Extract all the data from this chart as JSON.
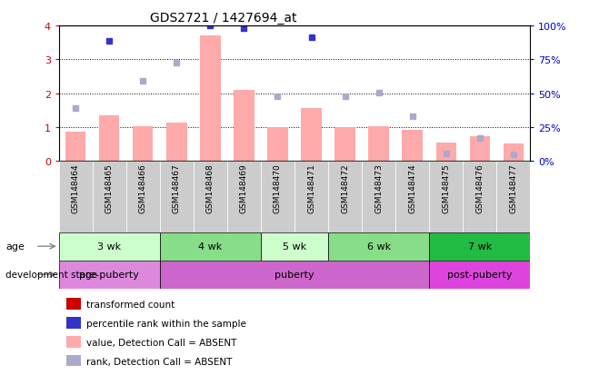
{
  "title": "GDS2721 / 1427694_at",
  "samples": [
    "GSM148464",
    "GSM148465",
    "GSM148466",
    "GSM148467",
    "GSM148468",
    "GSM148469",
    "GSM148470",
    "GSM148471",
    "GSM148472",
    "GSM148473",
    "GSM148474",
    "GSM148475",
    "GSM148476",
    "GSM148477"
  ],
  "bar_values": [
    0.85,
    1.35,
    1.02,
    1.12,
    3.7,
    2.1,
    1.0,
    1.55,
    1.0,
    1.02,
    0.9,
    0.55,
    0.72,
    0.52
  ],
  "rank_values": [
    1.55,
    3.55,
    2.35,
    2.9,
    4.0,
    3.92,
    1.9,
    3.65,
    1.9,
    2.02,
    1.32,
    0.22,
    0.67,
    0.18
  ],
  "bar_absent": [
    true,
    true,
    true,
    true,
    true,
    true,
    true,
    true,
    true,
    true,
    true,
    true,
    true,
    true
  ],
  "rank_absent": [
    true,
    false,
    true,
    true,
    false,
    false,
    true,
    false,
    true,
    true,
    true,
    true,
    true,
    true
  ],
  "ylim": [
    0,
    4
  ],
  "y2lim": [
    0,
    100
  ],
  "yticks": [
    0,
    1,
    2,
    3,
    4
  ],
  "y2ticks": [
    0,
    25,
    50,
    75,
    100
  ],
  "bar_color_present": "#cc0000",
  "bar_color_absent": "#ffaaaa",
  "rank_color_present": "#3333cc",
  "rank_color_absent": "#aaaacc",
  "bg_color": "#ffffff",
  "grid_color": "#000000",
  "age_groups": [
    {
      "label": "3 wk",
      "start": 0,
      "end": 3,
      "color": "#ccffcc"
    },
    {
      "label": "4 wk",
      "start": 3,
      "end": 6,
      "color": "#88dd88"
    },
    {
      "label": "5 wk",
      "start": 6,
      "end": 8,
      "color": "#ccffcc"
    },
    {
      "label": "6 wk",
      "start": 8,
      "end": 11,
      "color": "#88dd88"
    },
    {
      "label": "7 wk",
      "start": 11,
      "end": 14,
      "color": "#22bb44"
    }
  ],
  "dev_groups": [
    {
      "label": "pre-puberty",
      "start": 0,
      "end": 3,
      "color": "#dd88dd"
    },
    {
      "label": "puberty",
      "start": 3,
      "end": 11,
      "color": "#cc66cc"
    },
    {
      "label": "post-puberty",
      "start": 11,
      "end": 14,
      "color": "#dd44dd"
    }
  ],
  "legend_items": [
    {
      "label": "transformed count",
      "color": "#cc0000"
    },
    {
      "label": "percentile rank within the sample",
      "color": "#3333cc"
    },
    {
      "label": "value, Detection Call = ABSENT",
      "color": "#ffaaaa"
    },
    {
      "label": "rank, Detection Call = ABSENT",
      "color": "#aaaacc"
    }
  ],
  "ylabel_left_color": "#cc0000",
  "ylabel_right_color": "#0000cc",
  "tick_label_size": 7,
  "title_fontsize": 10
}
